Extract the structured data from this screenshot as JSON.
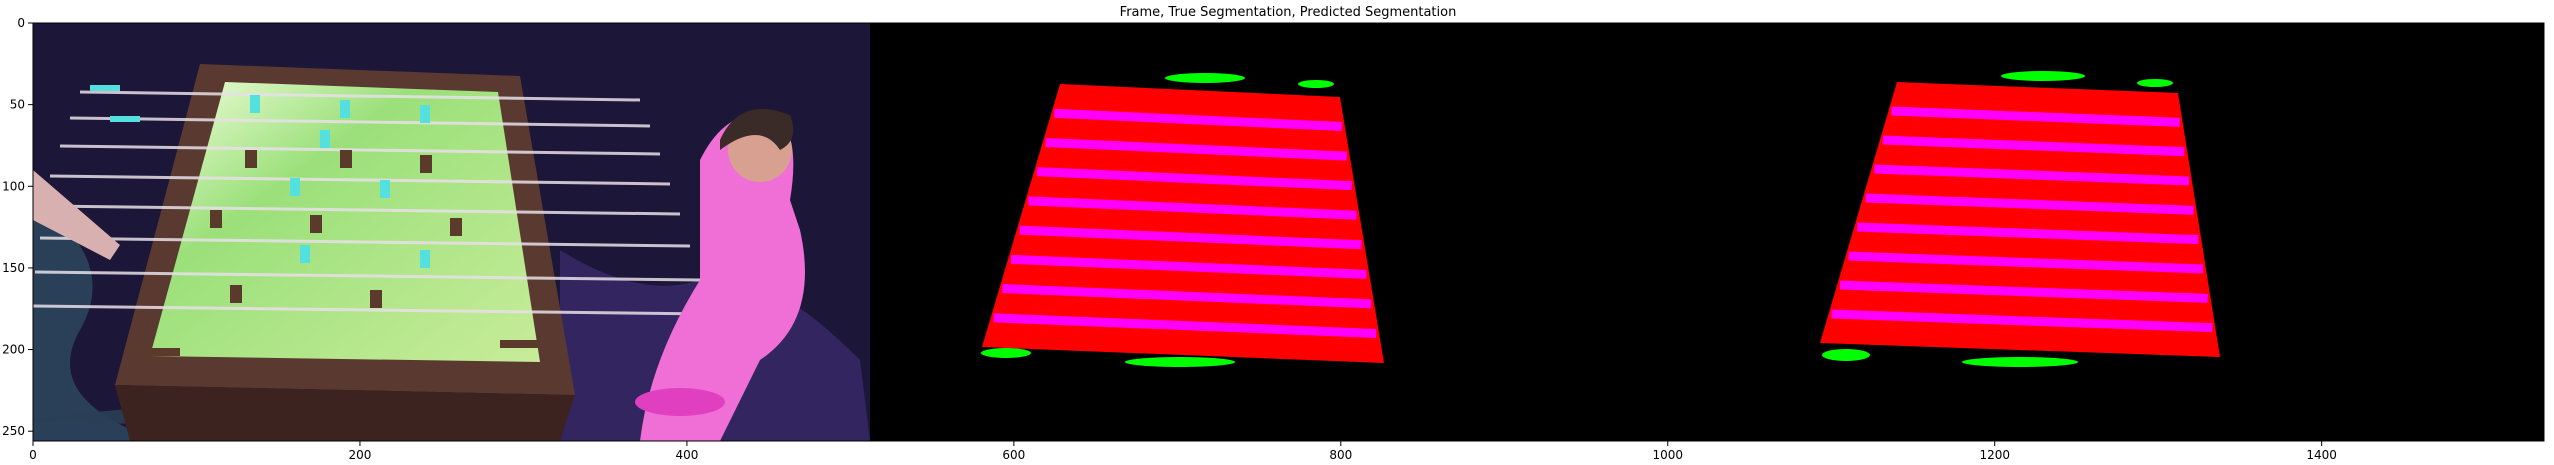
{
  "figure": {
    "title": "Frame, True Segmentation, Predicted Segmentation",
    "colors": {
      "background": "#000000",
      "table_class": "#ff0000",
      "rod_class": "#ff00ff",
      "goal_class": "#00ff00",
      "frame_table_wood": "#5a3a30",
      "frame_field": "#9be07a",
      "frame_rug": "#2a2350",
      "frame_player_shirt": "#ef6fd6"
    },
    "axes": {
      "x_ticks": [
        0,
        200,
        400,
        600,
        800,
        1000,
        1200,
        1400
      ],
      "y_ticks": [
        0,
        50,
        100,
        150,
        200,
        250
      ],
      "xlim": [
        0,
        1536
      ],
      "ylim": [
        256,
        0
      ]
    },
    "panels": [
      {
        "name": "frame",
        "x_range": [
          0,
          512
        ]
      },
      {
        "name": "true-segmentation",
        "x_range": [
          512,
          1024
        ]
      },
      {
        "name": "predicted-segmentation",
        "x_range": [
          1024,
          1536
        ]
      }
    ]
  }
}
